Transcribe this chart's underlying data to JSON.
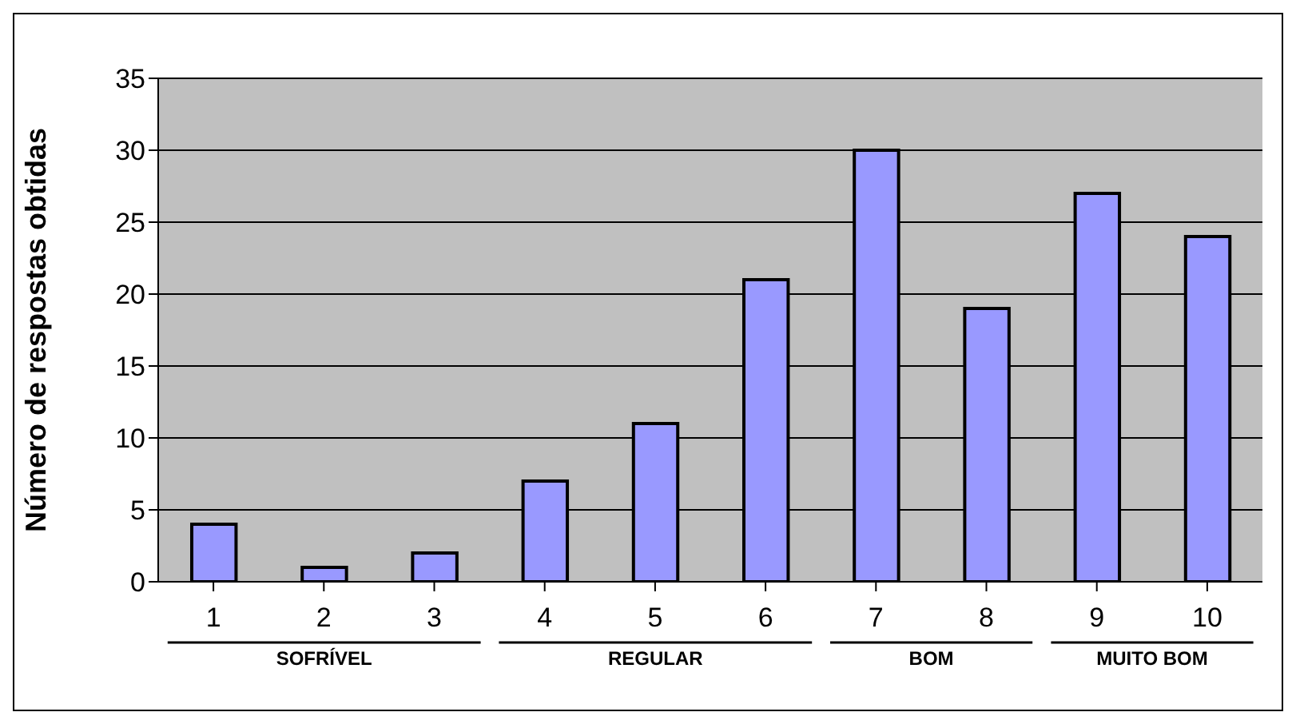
{
  "chart_data": {
    "type": "bar",
    "ylabel": "Número de respostas obtidas",
    "categories": [
      "1",
      "2",
      "3",
      "4",
      "5",
      "6",
      "7",
      "8",
      "9",
      "10"
    ],
    "values": [
      4,
      1,
      2,
      7,
      11,
      21,
      30,
      19,
      27,
      24
    ],
    "color": "#9999ff",
    "ylim": [
      0,
      35
    ],
    "yticks": [
      0,
      5,
      10,
      15,
      20,
      25,
      30,
      35
    ],
    "grid": "y",
    "annotations": [
      "SOFRÍVEL",
      "REGULAR",
      "BOM",
      "MUITO BOM"
    ]
  }
}
